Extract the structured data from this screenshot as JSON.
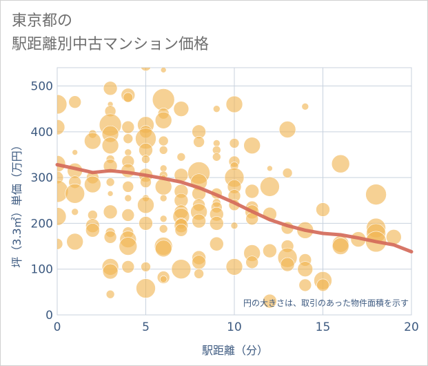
{
  "chart_data": {
    "type": "scatter",
    "title": [
      "東京都の",
      "駅距離別中古マンション価格"
    ],
    "xlabel": "駅距離（分）",
    "ylabel": "坪（3.3㎡）単価（万円）",
    "note": "円の大きさは、取引のあった物件面積を示す",
    "xlim": [
      0,
      20
    ],
    "ylim": [
      0,
      540
    ],
    "x_ticks": [
      "0",
      "5",
      "10",
      "15",
      "20"
    ],
    "y_ticks": [
      "0",
      "100",
      "200",
      "300",
      "400",
      "500"
    ],
    "grid": true,
    "bubble_color": "#f0b452",
    "trend_color": "#d46a5a",
    "trend_line": {
      "x": [
        0,
        1,
        2,
        3,
        4,
        5,
        6,
        7,
        8,
        9,
        10,
        11,
        12,
        13,
        14,
        15,
        16,
        17,
        18,
        19,
        20
      ],
      "y": [
        328,
        320,
        311,
        315,
        311,
        305,
        298,
        290,
        278,
        262,
        245,
        226,
        208,
        195,
        185,
        178,
        175,
        168,
        160,
        153,
        138
      ]
    },
    "points": [
      {
        "x": 0,
        "y": 460,
        "r": 14
      },
      {
        "x": 0,
        "y": 410,
        "r": 11
      },
      {
        "x": 0,
        "y": 330,
        "r": 12
      },
      {
        "x": 0,
        "y": 300,
        "r": 9
      },
      {
        "x": 0,
        "y": 270,
        "r": 16
      },
      {
        "x": 0,
        "y": 215,
        "r": 13
      },
      {
        "x": 0,
        "y": 155,
        "r": 8
      },
      {
        "x": 1,
        "y": 465,
        "r": 9
      },
      {
        "x": 1,
        "y": 355,
        "r": 4
      },
      {
        "x": 1,
        "y": 315,
        "r": 11
      },
      {
        "x": 1,
        "y": 290,
        "r": 9
      },
      {
        "x": 1,
        "y": 265,
        "r": 14
      },
      {
        "x": 1,
        "y": 225,
        "r": 5
      },
      {
        "x": 1,
        "y": 160,
        "r": 12
      },
      {
        "x": 2,
        "y": 395,
        "r": 6
      },
      {
        "x": 2,
        "y": 380,
        "r": 12
      },
      {
        "x": 2,
        "y": 300,
        "r": 9
      },
      {
        "x": 2,
        "y": 285,
        "r": 12
      },
      {
        "x": 2,
        "y": 218,
        "r": 7
      },
      {
        "x": 2,
        "y": 195,
        "r": 10
      },
      {
        "x": 2,
        "y": 185,
        "r": 10
      },
      {
        "x": 3,
        "y": 495,
        "r": 10
      },
      {
        "x": 3,
        "y": 460,
        "r": 4
      },
      {
        "x": 3,
        "y": 445,
        "r": 8
      },
      {
        "x": 3,
        "y": 415,
        "r": 16
      },
      {
        "x": 3,
        "y": 395,
        "r": 12
      },
      {
        "x": 3,
        "y": 370,
        "r": 12
      },
      {
        "x": 3,
        "y": 340,
        "r": 6
      },
      {
        "x": 3,
        "y": 325,
        "r": 10
      },
      {
        "x": 3,
        "y": 290,
        "r": 6
      },
      {
        "x": 3,
        "y": 265,
        "r": 4
      },
      {
        "x": 3,
        "y": 225,
        "r": 10
      },
      {
        "x": 3,
        "y": 180,
        "r": 7
      },
      {
        "x": 3,
        "y": 170,
        "r": 9
      },
      {
        "x": 3,
        "y": 105,
        "r": 12
      },
      {
        "x": 3,
        "y": 95,
        "r": 11
      },
      {
        "x": 3,
        "y": 45,
        "r": 6
      },
      {
        "x": 4,
        "y": 480,
        "r": 10
      },
      {
        "x": 4,
        "y": 475,
        "r": 7
      },
      {
        "x": 4,
        "y": 410,
        "r": 9
      },
      {
        "x": 4,
        "y": 385,
        "r": 7
      },
      {
        "x": 4,
        "y": 355,
        "r": 5
      },
      {
        "x": 4,
        "y": 335,
        "r": 9
      },
      {
        "x": 4,
        "y": 315,
        "r": 10
      },
      {
        "x": 4,
        "y": 280,
        "r": 8
      },
      {
        "x": 4,
        "y": 255,
        "r": 5
      },
      {
        "x": 4,
        "y": 218,
        "r": 9
      },
      {
        "x": 4,
        "y": 180,
        "r": 8
      },
      {
        "x": 4,
        "y": 165,
        "r": 12
      },
      {
        "x": 4,
        "y": 150,
        "r": 13
      },
      {
        "x": 4,
        "y": 105,
        "r": 9
      },
      {
        "x": 5,
        "y": 565,
        "r": 6
      },
      {
        "x": 5,
        "y": 545,
        "r": 8
      },
      {
        "x": 5,
        "y": 415,
        "r": 12
      },
      {
        "x": 5,
        "y": 400,
        "r": 9
      },
      {
        "x": 5,
        "y": 385,
        "r": 15
      },
      {
        "x": 5,
        "y": 360,
        "r": 10
      },
      {
        "x": 5,
        "y": 340,
        "r": 6
      },
      {
        "x": 5,
        "y": 305,
        "r": 10
      },
      {
        "x": 5,
        "y": 290,
        "r": 8
      },
      {
        "x": 5,
        "y": 255,
        "r": 5
      },
      {
        "x": 5,
        "y": 240,
        "r": 12
      },
      {
        "x": 5,
        "y": 200,
        "r": 10
      },
      {
        "x": 5,
        "y": 105,
        "r": 7
      },
      {
        "x": 5,
        "y": 58,
        "r": 14
      },
      {
        "x": 6,
        "y": 535,
        "r": 4
      },
      {
        "x": 6,
        "y": 470,
        "r": 16
      },
      {
        "x": 6,
        "y": 440,
        "r": 8
      },
      {
        "x": 6,
        "y": 425,
        "r": 12
      },
      {
        "x": 6,
        "y": 380,
        "r": 7
      },
      {
        "x": 6,
        "y": 360,
        "r": 6
      },
      {
        "x": 6,
        "y": 320,
        "r": 5
      },
      {
        "x": 6,
        "y": 305,
        "r": 6
      },
      {
        "x": 6,
        "y": 300,
        "r": 4
      },
      {
        "x": 6,
        "y": 280,
        "r": 12
      },
      {
        "x": 6,
        "y": 255,
        "r": 5
      },
      {
        "x": 6,
        "y": 210,
        "r": 5
      },
      {
        "x": 6,
        "y": 188,
        "r": 6
      },
      {
        "x": 6,
        "y": 150,
        "r": 13
      },
      {
        "x": 6,
        "y": 145,
        "r": 12
      },
      {
        "x": 6,
        "y": 82,
        "r": 9
      },
      {
        "x": 6,
        "y": 78,
        "r": 5
      },
      {
        "x": 7,
        "y": 450,
        "r": 11
      },
      {
        "x": 7,
        "y": 345,
        "r": 6
      },
      {
        "x": 7,
        "y": 305,
        "r": 10
      },
      {
        "x": 7,
        "y": 270,
        "r": 10
      },
      {
        "x": 7,
        "y": 250,
        "r": 10
      },
      {
        "x": 7,
        "y": 225,
        "r": 10
      },
      {
        "x": 7,
        "y": 215,
        "r": 12
      },
      {
        "x": 7,
        "y": 200,
        "r": 8
      },
      {
        "x": 7,
        "y": 195,
        "r": 10
      },
      {
        "x": 7,
        "y": 185,
        "r": 9
      },
      {
        "x": 7,
        "y": 100,
        "r": 14
      },
      {
        "x": 8,
        "y": 400,
        "r": 10
      },
      {
        "x": 8,
        "y": 378,
        "r": 8
      },
      {
        "x": 8,
        "y": 310,
        "r": 16
      },
      {
        "x": 8,
        "y": 290,
        "r": 12
      },
      {
        "x": 8,
        "y": 265,
        "r": 10
      },
      {
        "x": 8,
        "y": 240,
        "r": 9
      },
      {
        "x": 8,
        "y": 225,
        "r": 12
      },
      {
        "x": 8,
        "y": 205,
        "r": 10
      },
      {
        "x": 8,
        "y": 125,
        "r": 10
      },
      {
        "x": 8,
        "y": 115,
        "r": 10
      },
      {
        "x": 8,
        "y": 90,
        "r": 7
      },
      {
        "x": 9,
        "y": 450,
        "r": 5
      },
      {
        "x": 9,
        "y": 375,
        "r": 5
      },
      {
        "x": 9,
        "y": 360,
        "r": 6
      },
      {
        "x": 9,
        "y": 345,
        "r": 6
      },
      {
        "x": 9,
        "y": 265,
        "r": 8
      },
      {
        "x": 9,
        "y": 245,
        "r": 6
      },
      {
        "x": 9,
        "y": 235,
        "r": 8
      },
      {
        "x": 9,
        "y": 220,
        "r": 10
      },
      {
        "x": 9,
        "y": 200,
        "r": 10
      },
      {
        "x": 9,
        "y": 155,
        "r": 10
      },
      {
        "x": 10,
        "y": 460,
        "r": 12
      },
      {
        "x": 10,
        "y": 375,
        "r": 7
      },
      {
        "x": 10,
        "y": 335,
        "r": 8
      },
      {
        "x": 10,
        "y": 325,
        "r": 6
      },
      {
        "x": 10,
        "y": 300,
        "r": 14
      },
      {
        "x": 10,
        "y": 280,
        "r": 10
      },
      {
        "x": 10,
        "y": 260,
        "r": 9
      },
      {
        "x": 10,
        "y": 240,
        "r": 8
      },
      {
        "x": 10,
        "y": 195,
        "r": 5
      },
      {
        "x": 10,
        "y": 105,
        "r": 12
      },
      {
        "x": 11,
        "y": 370,
        "r": 12
      },
      {
        "x": 11,
        "y": 270,
        "r": 10
      },
      {
        "x": 11,
        "y": 235,
        "r": 9
      },
      {
        "x": 11,
        "y": 225,
        "r": 10
      },
      {
        "x": 11,
        "y": 210,
        "r": 9
      },
      {
        "x": 11,
        "y": 135,
        "r": 12
      },
      {
        "x": 11,
        "y": 115,
        "r": 9
      },
      {
        "x": 12,
        "y": 320,
        "r": 4
      },
      {
        "x": 12,
        "y": 280,
        "r": 14
      },
      {
        "x": 12,
        "y": 220,
        "r": 10
      },
      {
        "x": 12,
        "y": 140,
        "r": 10
      },
      {
        "x": 12,
        "y": 30,
        "r": 10
      },
      {
        "x": 13,
        "y": 405,
        "r": 12
      },
      {
        "x": 13,
        "y": 310,
        "r": 7
      },
      {
        "x": 13,
        "y": 190,
        "r": 9
      },
      {
        "x": 13,
        "y": 150,
        "r": 9
      },
      {
        "x": 13,
        "y": 125,
        "r": 14
      },
      {
        "x": 13,
        "y": 110,
        "r": 10
      },
      {
        "x": 14,
        "y": 455,
        "r": 5
      },
      {
        "x": 14,
        "y": 185,
        "r": 12
      },
      {
        "x": 14,
        "y": 120,
        "r": 9
      },
      {
        "x": 14,
        "y": 100,
        "r": 11
      },
      {
        "x": 14,
        "y": 65,
        "r": 9
      },
      {
        "x": 15,
        "y": 230,
        "r": 10
      },
      {
        "x": 15,
        "y": 75,
        "r": 13
      },
      {
        "x": 15,
        "y": 65,
        "r": 9
      },
      {
        "x": 16,
        "y": 330,
        "r": 13
      },
      {
        "x": 16,
        "y": 155,
        "r": 12
      },
      {
        "x": 16,
        "y": 150,
        "r": 12
      },
      {
        "x": 17,
        "y": 165,
        "r": 11
      },
      {
        "x": 18,
        "y": 263,
        "r": 15
      },
      {
        "x": 18,
        "y": 190,
        "r": 14
      },
      {
        "x": 18,
        "y": 178,
        "r": 14
      },
      {
        "x": 18,
        "y": 160,
        "r": 15
      },
      {
        "x": 19,
        "y": 170,
        "r": 11
      }
    ]
  }
}
